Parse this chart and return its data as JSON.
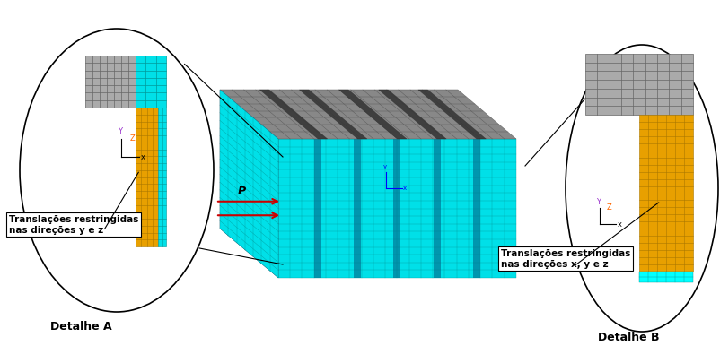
{
  "bg_color": "#ffffff",
  "cyan": "#00e0e8",
  "cyan2": "#00ffff",
  "gray_mesh": "#999999",
  "gray_dark": "#555555",
  "orange": "#e8a000",
  "text_color": "#000000",
  "axis_y_color": "#9933cc",
  "axis_z_color": "#ff6600",
  "axis_x_color": "#000000",
  "arrow_color": "#cc0000",
  "label_a_text": "Translações restringidas\nnas direções y e z",
  "label_b_text": "Translações restringidas\nnas direções x, y e z",
  "detalhe_a_text": "Detalhe A",
  "detalhe_b_text": "Detalhe B",
  "p_text": "P"
}
